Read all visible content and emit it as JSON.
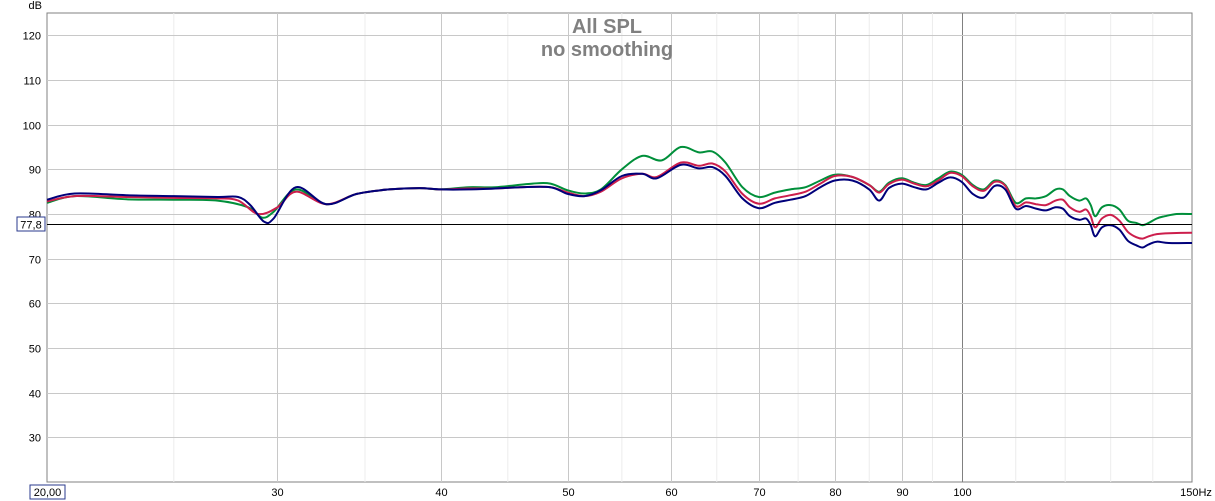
{
  "chart_data": {
    "type": "line",
    "title": "All SPL",
    "subtitle": "no smoothing",
    "ylabel": "dB",
    "x_unit_label": "150Hz",
    "x_scale": "log",
    "xlim": [
      20,
      150
    ],
    "ylim": [
      20,
      125
    ],
    "grid": true,
    "x_ticks": [
      {
        "value": 30,
        "label": "30"
      },
      {
        "value": 40,
        "label": "40"
      },
      {
        "value": 50,
        "label": "50"
      },
      {
        "value": 60,
        "label": "60"
      },
      {
        "value": 70,
        "label": "70"
      },
      {
        "value": 80,
        "label": "80"
      },
      {
        "value": 90,
        "label": "90"
      },
      {
        "value": 100,
        "label": "100"
      }
    ],
    "y_ticks": [
      {
        "value": 30,
        "label": "30"
      },
      {
        "value": 40,
        "label": "40"
      },
      {
        "value": 50,
        "label": "50"
      },
      {
        "value": 60,
        "label": "60"
      },
      {
        "value": 70,
        "label": "70"
      },
      {
        "value": 80,
        "label": "80"
      },
      {
        "value": 90,
        "label": "90"
      },
      {
        "value": 100,
        "label": "100"
      },
      {
        "value": 110,
        "label": "110"
      },
      {
        "value": 120,
        "label": "120"
      }
    ],
    "cursor": {
      "y": 77.8,
      "label": "77,8"
    },
    "x_start_label": "20,00",
    "series": [
      {
        "color": "#008f3a",
        "points": [
          [
            20,
            82.5
          ],
          [
            21,
            84
          ],
          [
            23,
            83.3
          ],
          [
            25,
            83.2
          ],
          [
            27,
            83
          ],
          [
            28.5,
            81.5
          ],
          [
            29.2,
            79.2
          ],
          [
            29.8,
            80.5
          ],
          [
            31,
            85.5
          ],
          [
            32.7,
            82.2
          ],
          [
            34.5,
            84.5
          ],
          [
            36.5,
            85.5
          ],
          [
            38.5,
            85.8
          ],
          [
            40,
            85.5
          ],
          [
            42,
            86
          ],
          [
            44,
            86
          ],
          [
            47,
            86.8
          ],
          [
            48.5,
            86.8
          ],
          [
            50,
            85.3
          ],
          [
            51.5,
            84.6
          ],
          [
            53,
            85.5
          ],
          [
            55,
            90
          ],
          [
            57,
            93
          ],
          [
            59,
            92
          ],
          [
            61,
            95
          ],
          [
            63,
            93.8
          ],
          [
            64.5,
            94
          ],
          [
            66,
            91.5
          ],
          [
            68,
            86
          ],
          [
            70,
            83.8
          ],
          [
            72,
            84.8
          ],
          [
            74,
            85.5
          ],
          [
            76,
            86
          ],
          [
            78,
            87.5
          ],
          [
            80,
            88.8
          ],
          [
            82.5,
            88.3
          ],
          [
            85,
            86.5
          ],
          [
            86.5,
            85
          ],
          [
            88,
            87
          ],
          [
            90,
            88
          ],
          [
            92,
            87
          ],
          [
            94,
            86.5
          ],
          [
            96,
            88
          ],
          [
            98,
            89.5
          ],
          [
            100,
            88.8
          ],
          [
            102,
            86.5
          ],
          [
            104,
            85.5
          ],
          [
            106,
            87.5
          ],
          [
            108,
            86.5
          ],
          [
            110,
            82.5
          ],
          [
            112,
            83.5
          ],
          [
            114,
            83.5
          ],
          [
            116,
            84
          ],
          [
            118,
            85.5
          ],
          [
            119.5,
            85.5
          ],
          [
            121,
            84
          ],
          [
            123,
            83
          ],
          [
            124.5,
            83.5
          ],
          [
            125.5,
            82
          ],
          [
            126.5,
            79.5
          ],
          [
            128,
            81.5
          ],
          [
            130,
            82
          ],
          [
            132,
            81
          ],
          [
            134,
            78.5
          ],
          [
            136,
            78
          ],
          [
            137.5,
            77.5
          ],
          [
            139,
            78
          ],
          [
            141,
            79
          ],
          [
            143,
            79.5
          ],
          [
            146,
            80
          ],
          [
            150,
            80
          ]
        ]
      },
      {
        "color": "#cc1e4c",
        "points": [
          [
            20,
            82.8
          ],
          [
            21,
            84
          ],
          [
            23,
            83.8
          ],
          [
            25,
            83.6
          ],
          [
            27,
            83.5
          ],
          [
            28,
            83
          ],
          [
            29,
            80
          ],
          [
            30,
            81.5
          ],
          [
            31,
            85
          ],
          [
            32.7,
            82.2
          ],
          [
            34.5,
            84.5
          ],
          [
            36.5,
            85.5
          ],
          [
            38.5,
            85.8
          ],
          [
            40,
            85.5
          ],
          [
            42,
            85.7
          ],
          [
            44,
            85.7
          ],
          [
            46,
            86
          ],
          [
            48.5,
            86
          ],
          [
            50,
            84.8
          ],
          [
            51.5,
            84
          ],
          [
            53,
            85
          ],
          [
            55,
            88
          ],
          [
            57,
            89
          ],
          [
            58.5,
            88.3
          ],
          [
            61,
            91.5
          ],
          [
            63,
            90.8
          ],
          [
            64.5,
            91.3
          ],
          [
            66,
            89.5
          ],
          [
            68,
            84.5
          ],
          [
            70,
            82.3
          ],
          [
            72,
            83.5
          ],
          [
            74,
            84.2
          ],
          [
            76,
            85
          ],
          [
            78,
            86.8
          ],
          [
            80,
            88.5
          ],
          [
            82.5,
            88.3
          ],
          [
            85,
            86.5
          ],
          [
            86.5,
            84.8
          ],
          [
            88,
            86.7
          ],
          [
            90,
            87.7
          ],
          [
            92,
            86.8
          ],
          [
            94,
            86.2
          ],
          [
            96,
            87.5
          ],
          [
            98,
            89.2
          ],
          [
            100,
            88.5
          ],
          [
            102,
            86.2
          ],
          [
            104,
            85.2
          ],
          [
            106,
            87.2
          ],
          [
            108,
            86.3
          ],
          [
            110,
            81.8
          ],
          [
            112,
            82.6
          ],
          [
            114,
            82.2
          ],
          [
            116,
            82
          ],
          [
            118,
            83
          ],
          [
            119.5,
            83.2
          ],
          [
            121,
            81.5
          ],
          [
            123,
            80.5
          ],
          [
            124.5,
            81
          ],
          [
            125.5,
            79.5
          ],
          [
            126.5,
            77
          ],
          [
            128,
            79
          ],
          [
            130,
            79.8
          ],
          [
            132,
            78.5
          ],
          [
            134,
            76
          ],
          [
            136,
            74.8
          ],
          [
            137.5,
            74.5
          ],
          [
            139,
            75
          ],
          [
            141,
            75.5
          ],
          [
            144,
            75.7
          ],
          [
            150,
            75.8
          ]
        ]
      },
      {
        "color": "#00007a",
        "points": [
          [
            20,
            83.2
          ],
          [
            21,
            84.6
          ],
          [
            23,
            84.2
          ],
          [
            25,
            84
          ],
          [
            27,
            83.8
          ],
          [
            28,
            83.8
          ],
          [
            28.6,
            82
          ],
          [
            29.3,
            78.3
          ],
          [
            29.8,
            79
          ],
          [
            31,
            86
          ],
          [
            32.7,
            82.2
          ],
          [
            34.5,
            84.5
          ],
          [
            36.5,
            85.5
          ],
          [
            38.5,
            85.8
          ],
          [
            40,
            85.5
          ],
          [
            42,
            85.5
          ],
          [
            44,
            85.7
          ],
          [
            46,
            86
          ],
          [
            48.5,
            86
          ],
          [
            50,
            84.5
          ],
          [
            51.5,
            84
          ],
          [
            53,
            85.3
          ],
          [
            55,
            88.5
          ],
          [
            57,
            89
          ],
          [
            58.5,
            88
          ],
          [
            61,
            91
          ],
          [
            63,
            90.2
          ],
          [
            64.5,
            90.5
          ],
          [
            66,
            88.5
          ],
          [
            68,
            83.5
          ],
          [
            70,
            81.3
          ],
          [
            72,
            82.5
          ],
          [
            74,
            83.2
          ],
          [
            76,
            84
          ],
          [
            78,
            86
          ],
          [
            80,
            87.5
          ],
          [
            82.5,
            87.5
          ],
          [
            85,
            85.5
          ],
          [
            86.5,
            83
          ],
          [
            88,
            85.8
          ],
          [
            90,
            86.8
          ],
          [
            92,
            86
          ],
          [
            94,
            85.5
          ],
          [
            96,
            87
          ],
          [
            98,
            88.2
          ],
          [
            100,
            87.2
          ],
          [
            102,
            84.5
          ],
          [
            104,
            83.7
          ],
          [
            106,
            86.3
          ],
          [
            108,
            85.5
          ],
          [
            110,
            81.2
          ],
          [
            112,
            81.8
          ],
          [
            114,
            81.2
          ],
          [
            116,
            80.8
          ],
          [
            118,
            81.5
          ],
          [
            119.5,
            81.2
          ],
          [
            121,
            79.5
          ],
          [
            123,
            78.7
          ],
          [
            124.5,
            79
          ],
          [
            125.5,
            77.5
          ],
          [
            126.5,
            75
          ],
          [
            128,
            77
          ],
          [
            130,
            77.5
          ],
          [
            132,
            76.5
          ],
          [
            134,
            74
          ],
          [
            136,
            73
          ],
          [
            137.5,
            72.5
          ],
          [
            139,
            73.2
          ],
          [
            141,
            73.8
          ],
          [
            144,
            73.5
          ],
          [
            150,
            73.5
          ]
        ]
      }
    ]
  }
}
